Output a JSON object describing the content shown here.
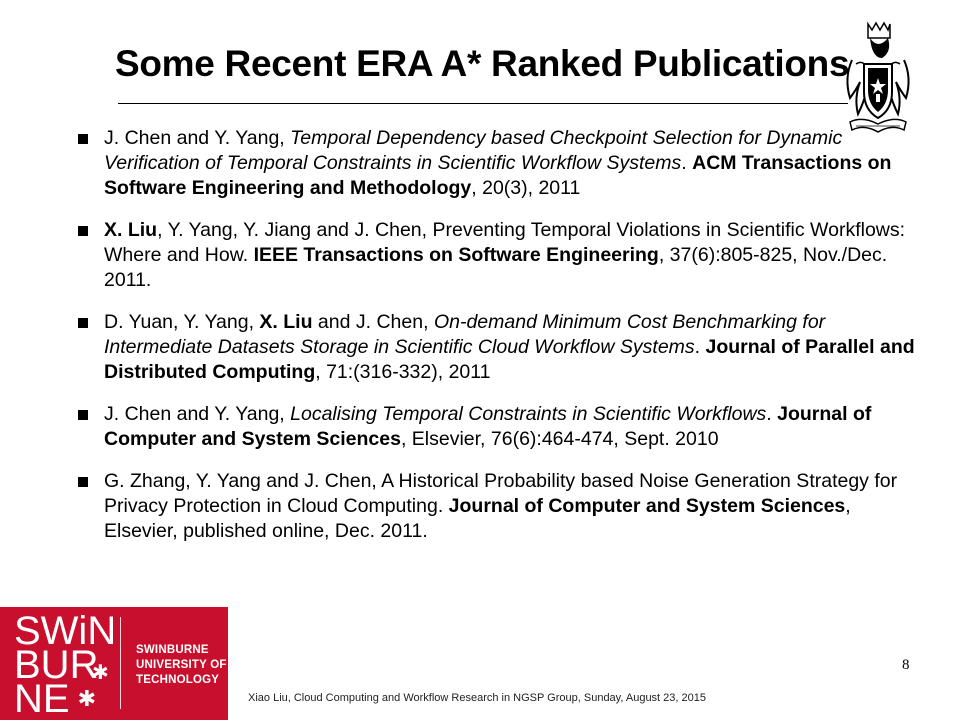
{
  "slide": {
    "title": "Some Recent ERA A* Ranked Publications",
    "page_number": "8",
    "footer": "Xiao Liu, Cloud Computing and Workflow Research in NGSP Group, Sunday, August 23, 2015"
  },
  "crest": {
    "icon": "university-crest-icon"
  },
  "logo": {
    "lines": [
      "SWiN",
      "BUR",
      "NE"
    ],
    "stars": [
      "✱",
      "✱"
    ],
    "university": [
      "SWINBURNE",
      "UNIVERSITY OF",
      "TECHNOLOGY"
    ],
    "color": "#c8102e"
  },
  "publications": [
    {
      "segments": [
        {
          "text": "J. Chen and Y. Yang, "
        },
        {
          "text": "Temporal Dependency based Checkpoint Selection for Dynamic Verification of Temporal Constraints in Scientific Workflow Systems",
          "style": "i"
        },
        {
          "text": ". "
        },
        {
          "text": "ACM Transactions on Software Engineering and Methodology",
          "style": "b"
        },
        {
          "text": ", 20(3), 2011"
        }
      ]
    },
    {
      "segments": [
        {
          "text": "X. Liu",
          "style": "b"
        },
        {
          "text": ", Y. Yang, Y. Jiang and J. Chen, Preventing Temporal Violations in Scientific Workflows: Where and How. "
        },
        {
          "text": "IEEE Transactions on Software Engineering",
          "style": "b"
        },
        {
          "text": ", 37(6):805-825, Nov./Dec. 2011."
        }
      ]
    },
    {
      "segments": [
        {
          "text": "D. Yuan, Y. Yang, "
        },
        {
          "text": "X. Liu",
          "style": "b"
        },
        {
          "text": " and J. Chen, "
        },
        {
          "text": "On-demand Minimum Cost Benchmarking for Intermediate Datasets Storage in Scientific Cloud Workflow Systems",
          "style": "i"
        },
        {
          "text": ". "
        },
        {
          "text": "Journal of Parallel and Distributed Computing",
          "style": "b"
        },
        {
          "text": ", 71:(316-332), 2011"
        }
      ]
    },
    {
      "segments": [
        {
          "text": "J. Chen and Y. Yang, "
        },
        {
          "text": "Localising Temporal Constraints in Scientific Workflows",
          "style": "i"
        },
        {
          "text": ". "
        },
        {
          "text": "Journal of Computer and System Sciences",
          "style": "b"
        },
        {
          "text": ", Elsevier, 76(6):464-474, Sept. 2010"
        }
      ]
    },
    {
      "segments": [
        {
          "text": "G. Zhang, Y. Yang and J. Chen, A Historical Probability based Noise Generation Strategy for Privacy Protection in Cloud Computing. "
        },
        {
          "text": "Journal of Computer and System Sciences",
          "style": "b"
        },
        {
          "text": ", Elsevier, published online, Dec. 2011."
        }
      ]
    }
  ]
}
